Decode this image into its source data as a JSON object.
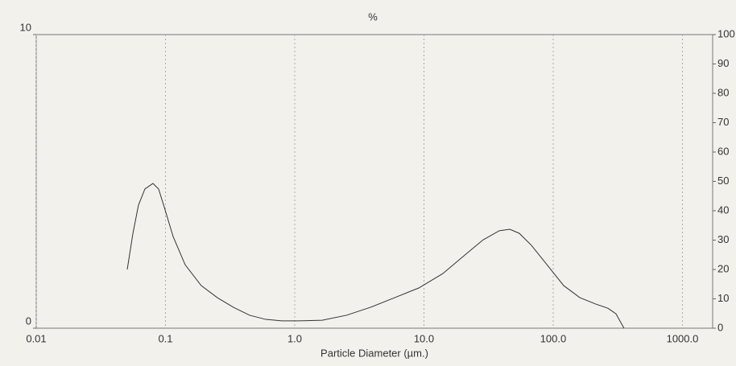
{
  "chart_data": {
    "type": "line",
    "title": "%",
    "x_label": "Particle Diameter (µm.)",
    "x": [
      0.0506,
      0.056,
      0.0618,
      0.0693,
      0.08,
      0.0885,
      0.099,
      0.1146,
      0.142,
      0.189,
      0.252,
      0.336,
      0.448,
      0.597,
      0.794,
      1.06,
      1.63,
      2.51,
      3.85,
      5.93,
      9.12,
      14.0,
      21.5,
      28.7,
      38.3,
      46.1,
      54.7,
      67.9,
      90.4,
      120.5,
      161,
      214,
      265,
      306,
      353
    ],
    "series": [
      {
        "color": "#333333",
        "values": [
          2.0,
          3.23,
          4.19,
          4.74,
          4.93,
          4.74,
          4.05,
          3.12,
          2.16,
          1.45,
          1.04,
          0.71,
          0.44,
          0.3,
          0.25,
          0.25,
          0.27,
          0.44,
          0.71,
          1.04,
          1.37,
          1.86,
          2.55,
          3.01,
          3.32,
          3.37,
          3.23,
          2.82,
          2.14,
          1.45,
          1.04,
          0.82,
          0.68,
          0.49,
          0.0
        ]
      }
    ],
    "xlog": true,
    "xlim": [
      0.01,
      1713
    ],
    "xticks": [
      {
        "value": 0.01,
        "label": "0.01"
      },
      {
        "value": 0.1,
        "label": "0.1"
      },
      {
        "value": 1,
        "label": "1.0"
      },
      {
        "value": 10,
        "label": "10.0"
      },
      {
        "value": 100,
        "label": "100.0"
      },
      {
        "value": 1000,
        "label": "1000.0"
      }
    ],
    "ylim": [
      0,
      10
    ],
    "yticks": [
      0,
      10
    ],
    "y2lim": [
      0,
      100
    ],
    "y2ticks": [
      0,
      10,
      20,
      30,
      40,
      50,
      60,
      70,
      80,
      90,
      100
    ],
    "grid": true
  }
}
